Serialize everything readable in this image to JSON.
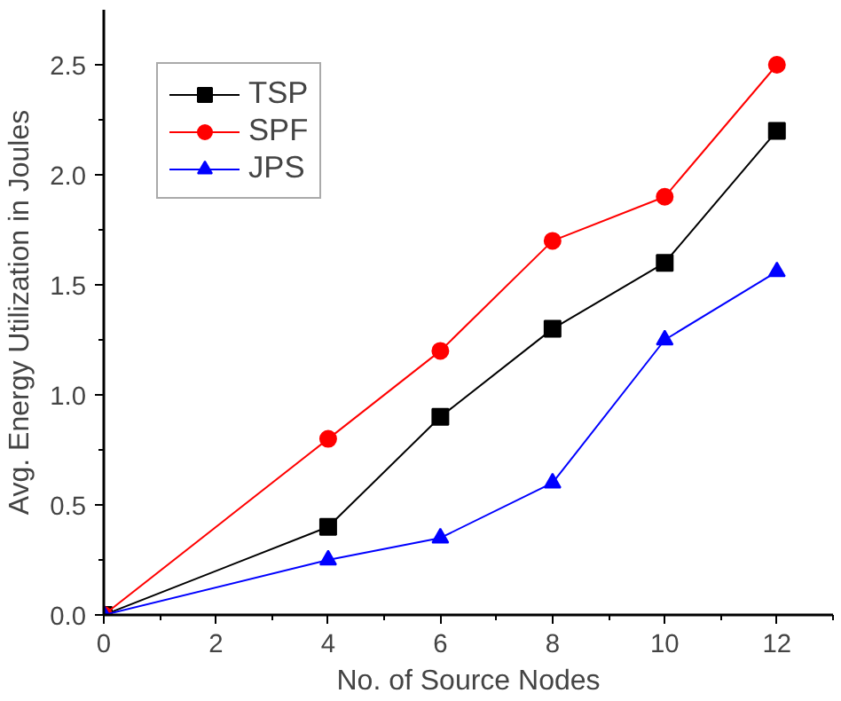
{
  "chart_data": {
    "type": "line",
    "xlabel": "No. of Source Nodes",
    "ylabel": "Avg. Energy Utilization in Joules",
    "series": [
      {
        "name": "TSP",
        "color": "#000000",
        "marker": "square",
        "x": [
          0,
          4,
          6,
          8,
          10,
          12
        ],
        "values": [
          0,
          0.4,
          0.9,
          1.3,
          1.6,
          2.2
        ]
      },
      {
        "name": "SPF",
        "color": "#ff0000",
        "marker": "circle",
        "x": [
          0,
          4,
          6,
          8,
          10,
          12
        ],
        "values": [
          0,
          0.8,
          1.2,
          1.7,
          1.9,
          2.5
        ]
      },
      {
        "name": "JPS",
        "color": "#0000ff",
        "marker": "triangle",
        "x": [
          0,
          4,
          6,
          8,
          10,
          12
        ],
        "values": [
          0,
          0.25,
          0.35,
          0.6,
          1.25,
          1.56
        ]
      }
    ],
    "xlim": [
      0,
      13
    ],
    "ylim": [
      0,
      2.75
    ],
    "xticks": [
      0,
      2,
      4,
      6,
      8,
      10,
      12
    ],
    "yticks": [
      {
        "value": 0,
        "label": "0.0"
      },
      {
        "value": 0.5,
        "label": "0.5"
      },
      {
        "value": 1,
        "label": "1.0"
      },
      {
        "value": 1.5,
        "label": "1.5"
      },
      {
        "value": 2,
        "label": "2.0"
      },
      {
        "value": 2.5,
        "label": "2.5"
      }
    ],
    "grid": false,
    "legend": "top left",
    "line_style": "solid"
  }
}
